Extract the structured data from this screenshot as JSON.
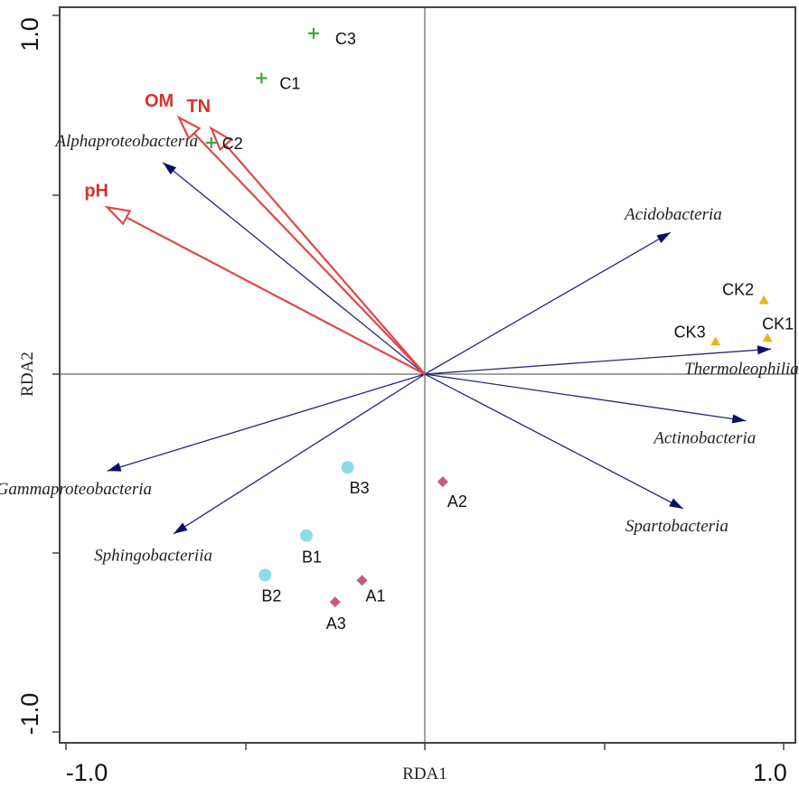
{
  "chart_data": {
    "type": "scatter",
    "title": "",
    "xlabel": "RDA1",
    "ylabel": "RDA2",
    "xlim": [
      -1.0,
      1.0
    ],
    "ylim": [
      -1.0,
      1.0
    ],
    "x_tick_labels": [
      "-1.0",
      "1.0"
    ],
    "y_tick_labels": [
      "1.0",
      "-1.0"
    ],
    "colors": {
      "species_arrow": "#28287a",
      "species_head": "#0c0c6e",
      "env_arrow": "#e04848",
      "env_label": "#d93030",
      "C": "#3aa83a",
      "CK": "#f0b419",
      "B": "#8fdbe8",
      "A": "#c85a82",
      "axis": "#444444"
    },
    "env_factors": [
      {
        "name": "OM",
        "x": -0.685,
        "y": 0.715
      },
      {
        "name": "TN",
        "x": -0.595,
        "y": 0.685
      },
      {
        "name": "pH",
        "x": -0.885,
        "y": 0.465
      }
    ],
    "species": [
      {
        "name": "Alphaproteobacteria",
        "x": -0.73,
        "y": 0.59
      },
      {
        "name": "Acidobacteria",
        "x": 0.685,
        "y": 0.395
      },
      {
        "name": "Thermoleophilia",
        "x": 0.965,
        "y": 0.07
      },
      {
        "name": "Actinobacteria",
        "x": 0.895,
        "y": -0.13
      },
      {
        "name": "Spartobacteria",
        "x": 0.72,
        "y": -0.375
      },
      {
        "name": "Gammaproteobacteria",
        "x": -0.885,
        "y": -0.27
      },
      {
        "name": "Sphingobacteriia",
        "x": -0.7,
        "y": -0.445
      }
    ],
    "samples": [
      {
        "name": "C1",
        "group": "C",
        "marker": "plus",
        "x": -0.455,
        "y": 0.825
      },
      {
        "name": "C2",
        "group": "C",
        "marker": "plus",
        "x": -0.595,
        "y": 0.645
      },
      {
        "name": "C3",
        "group": "C",
        "marker": "plus",
        "x": -0.31,
        "y": 0.95
      },
      {
        "name": "CK1",
        "group": "CK",
        "marker": "triangle",
        "x": 0.955,
        "y": 0.1
      },
      {
        "name": "CK2",
        "group": "CK",
        "marker": "triangle",
        "x": 0.945,
        "y": 0.205
      },
      {
        "name": "CK3",
        "group": "CK",
        "marker": "triangle",
        "x": 0.81,
        "y": 0.09
      },
      {
        "name": "B1",
        "group": "B",
        "marker": "circle",
        "x": -0.33,
        "y": -0.45
      },
      {
        "name": "B2",
        "group": "B",
        "marker": "circle",
        "x": -0.445,
        "y": -0.56
      },
      {
        "name": "B3",
        "group": "B",
        "marker": "circle",
        "x": -0.215,
        "y": -0.26
      },
      {
        "name": "A1",
        "group": "A",
        "marker": "diamond",
        "x": -0.175,
        "y": -0.575
      },
      {
        "name": "A2",
        "group": "A",
        "marker": "diamond",
        "x": 0.05,
        "y": -0.3
      },
      {
        "name": "A3",
        "group": "A",
        "marker": "diamond",
        "x": -0.25,
        "y": -0.635
      }
    ]
  }
}
